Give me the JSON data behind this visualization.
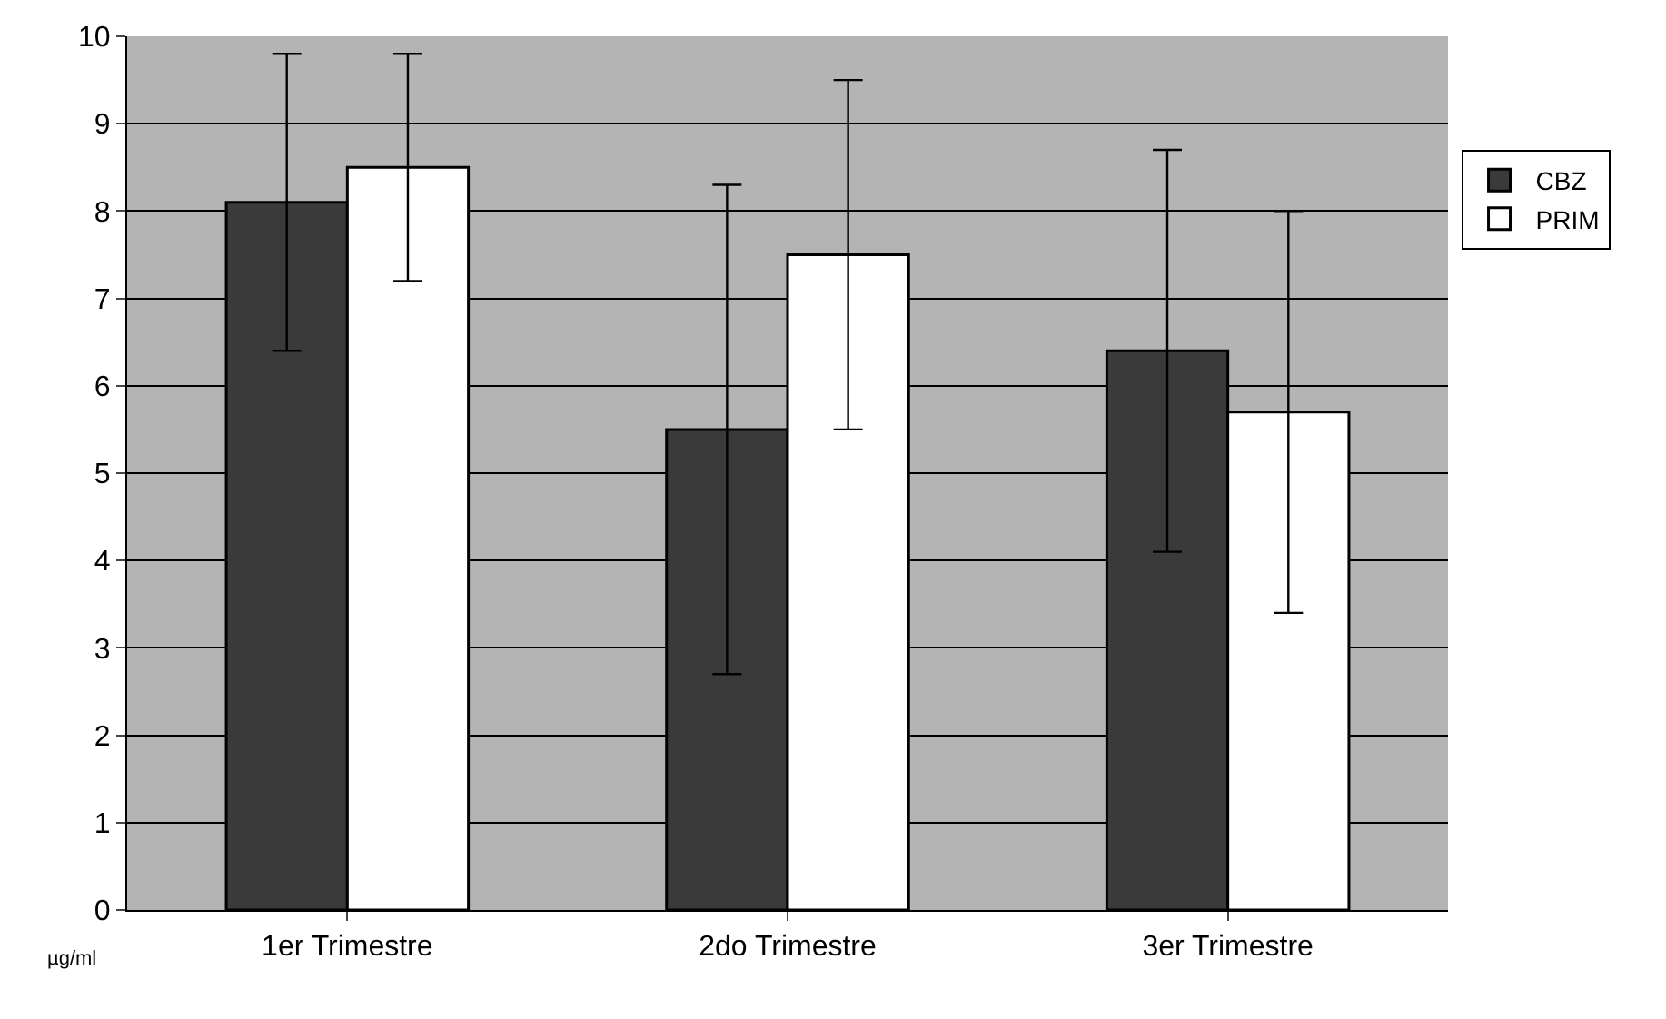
{
  "chart_data": {
    "type": "bar",
    "ylabel": "µg/ml",
    "categories": [
      "1er Trimestre",
      "2do Trimestre",
      "3er Trimestre"
    ],
    "series": [
      {
        "name": "CBZ",
        "color": "#3a3a3a",
        "values": [
          8.1,
          5.5,
          6.4
        ],
        "errors": [
          1.7,
          2.8,
          2.3
        ]
      },
      {
        "name": "PRIM",
        "color": "#ffffff",
        "values": [
          8.5,
          7.5,
          5.7
        ],
        "errors": [
          1.3,
          2.0,
          2.3
        ]
      }
    ],
    "ylim": [
      0,
      10
    ],
    "yticks": [
      0,
      1,
      2,
      3,
      4,
      5,
      6,
      7,
      8,
      9,
      10
    ],
    "grid": "y",
    "legend": "right"
  }
}
